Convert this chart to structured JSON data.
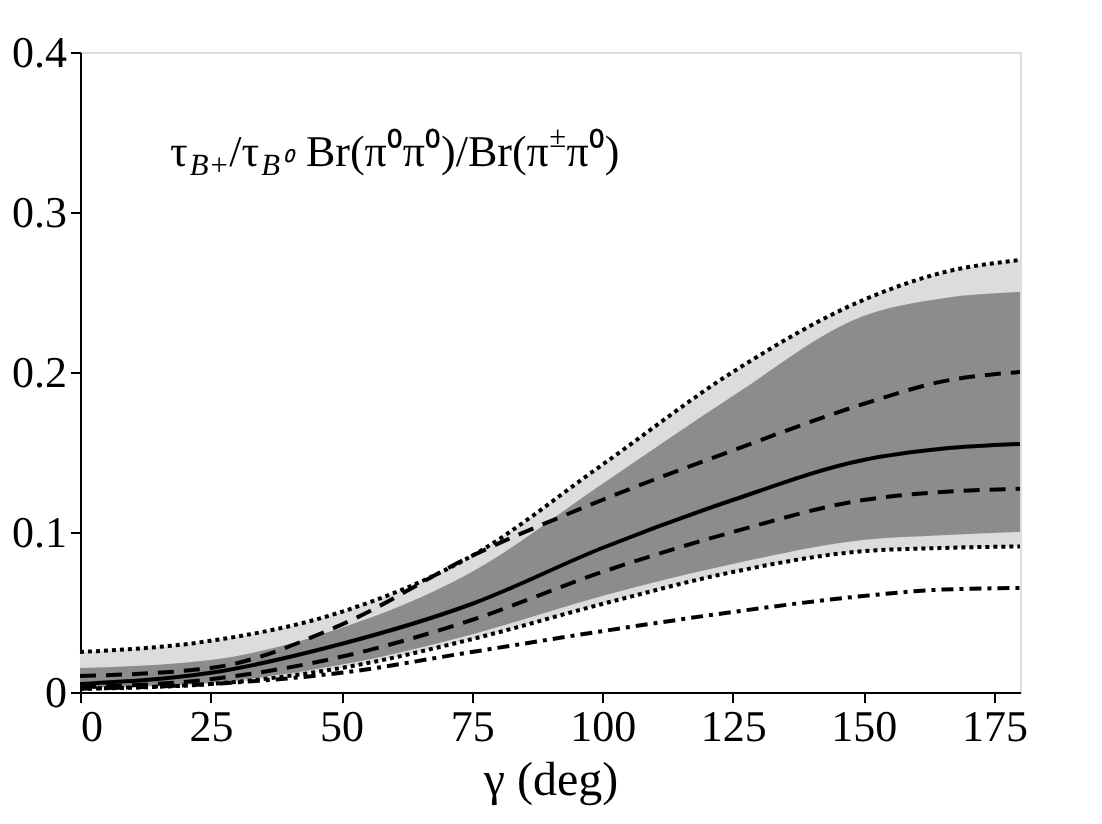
{
  "chart_data": {
    "type": "line",
    "xlabel": "γ (deg)",
    "x": [
      0,
      25,
      50,
      75,
      100,
      125,
      150,
      165,
      180
    ],
    "xlim": [
      0,
      180
    ],
    "xticks": [
      0,
      25,
      50,
      75,
      100,
      125,
      150,
      175
    ],
    "ylim": [
      0,
      0.4
    ],
    "yticks": [
      0,
      0.1,
      0.2,
      0.3,
      0.4
    ],
    "grid": false,
    "marker": "none",
    "annotations": [
      "τ$_{B+}$/τ$_{B⁰}$ Br(π⁰π⁰)/Br(π$^{±}$π⁰)"
    ],
    "series": [
      {
        "color": "#000000",
        "line_style": "dotted",
        "values": [
          0.025,
          0.032,
          0.05,
          0.085,
          0.142,
          0.2,
          0.245,
          0.262,
          0.27
        ],
        "lower": [
          0.002,
          0.005,
          0.015,
          0.033,
          0.055,
          0.075,
          0.088,
          0.09,
          0.091
        ],
        "upper": [
          0.025,
          0.032,
          0.05,
          0.085,
          0.142,
          0.2,
          0.245,
          0.262,
          0.27
        ]
      },
      {
        "color": "#000000",
        "line_style": "dotted",
        "values": [
          0.002,
          0.005,
          0.015,
          0.033,
          0.055,
          0.075,
          0.088,
          0.09,
          0.091
        ]
      },
      {
        "color": "#000000",
        "line_style": "solid",
        "values": [
          0.005,
          0.012,
          0.03,
          0.055,
          0.09,
          0.12,
          0.145,
          0.152,
          0.155
        ],
        "lower": [
          0.003,
          0.006,
          0.017,
          0.036,
          0.06,
          0.08,
          0.095,
          0.098,
          0.1
        ],
        "upper": [
          0.015,
          0.02,
          0.04,
          0.075,
          0.13,
          0.185,
          0.235,
          0.246,
          0.25
        ]
      },
      {
        "color": "#000000",
        "line_style": "dashed",
        "values": [
          0.01,
          0.015,
          0.042,
          0.085,
          0.12,
          0.151,
          0.18,
          0.194,
          0.2
        ]
      },
      {
        "color": "#000000",
        "line_style": "dashed",
        "values": [
          0.003,
          0.008,
          0.022,
          0.045,
          0.075,
          0.1,
          0.12,
          0.125,
          0.127
        ]
      },
      {
        "color": "#000000",
        "line_style": "dashdot",
        "values": [
          0.002,
          0.005,
          0.012,
          0.025,
          0.038,
          0.05,
          0.06,
          0.064,
          0.065
        ]
      }
    ]
  }
}
